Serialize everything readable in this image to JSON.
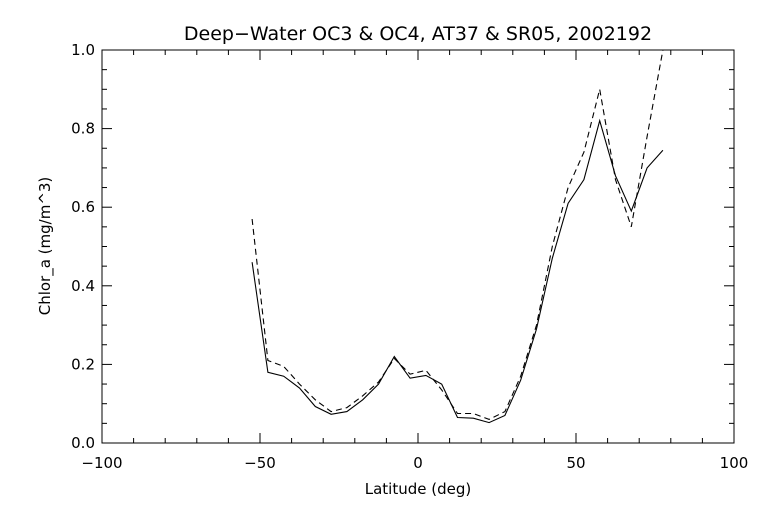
{
  "chart_data": {
    "type": "line",
    "title": "Deep−Water OC3 & OC4, AT37 & SR05, 2002192",
    "xlabel": "Latitude (deg)",
    "ylabel": "Chlor_a (mg/m^3)",
    "xlim": [
      -100,
      100
    ],
    "ylim": [
      0.0,
      1.0
    ],
    "x_ticks": [
      -100,
      -50,
      0,
      50,
      100
    ],
    "x_tick_labels": [
      "−100",
      "−50",
      "0",
      "50",
      "100"
    ],
    "y_ticks": [
      0.0,
      0.2,
      0.4,
      0.6,
      0.8,
      1.0
    ],
    "y_tick_labels": [
      "0.0",
      "0.2",
      "0.4",
      "0.6",
      "0.8",
      "1.0"
    ],
    "grid": false,
    "legend": "none",
    "series": [
      {
        "style": "solid",
        "color": "#000000",
        "x": [
          -52.5,
          -47.5,
          -42.5,
          -37.5,
          -32.5,
          -27.5,
          -22.5,
          -17.5,
          -12.5,
          -7.5,
          -2.5,
          2.5,
          7.5,
          12.5,
          17.5,
          22.5,
          27.5,
          32.5,
          37.5,
          42.5,
          47.5,
          52.5,
          57.5,
          62.5,
          67.5,
          72.5,
          77.5
        ],
        "values": [
          0.46,
          0.18,
          0.17,
          0.14,
          0.093,
          0.073,
          0.08,
          0.11,
          0.15,
          0.22,
          0.165,
          0.172,
          0.15,
          0.065,
          0.063,
          0.052,
          0.07,
          0.16,
          0.29,
          0.47,
          0.61,
          0.67,
          0.82,
          0.68,
          0.59,
          0.7,
          0.745
        ]
      },
      {
        "style": "dashed",
        "color": "#000000",
        "x": [
          -52.5,
          -47.5,
          -42.5,
          -37.5,
          -32.5,
          -27.5,
          -22.5,
          -17.5,
          -12.5,
          -7.5,
          -2.5,
          2.5,
          7.5,
          12.5,
          17.5,
          22.5,
          27.5,
          32.5,
          37.5,
          42.5,
          47.5,
          52.5,
          57.5,
          62.5,
          67.5,
          72.5,
          77.5
        ],
        "values": [
          0.57,
          0.21,
          0.195,
          0.15,
          0.11,
          0.08,
          0.09,
          0.12,
          0.155,
          0.215,
          0.175,
          0.185,
          0.135,
          0.075,
          0.075,
          0.06,
          0.08,
          0.17,
          0.3,
          0.5,
          0.65,
          0.74,
          0.9,
          0.67,
          0.55,
          0.78,
          1.0
        ]
      }
    ]
  }
}
